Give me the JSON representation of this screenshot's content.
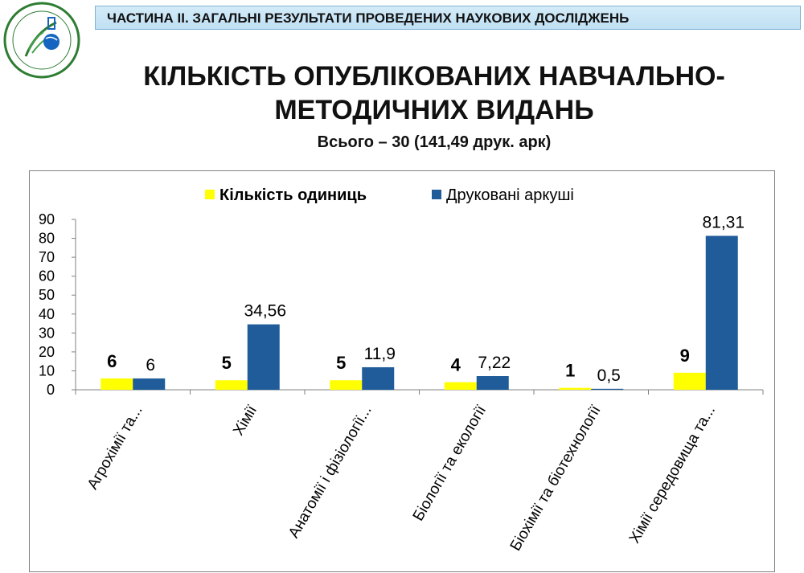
{
  "header": {
    "section_title": "ЧАСТИНА ІІ. ЗАГАЛЬНІ РЕЗУЛЬТАТИ ПРОВЕДЕНИХ НАУКОВИХ ДОСЛІДЖЕНЬ",
    "logo_icon": "faculty-seal-icon"
  },
  "title": {
    "line1": "КІЛЬКІСТЬ ОПУБЛІКОВАНИХ НАВЧАЛЬНО-",
    "line2": "МЕТОДИЧНИХ ВИДАНЬ"
  },
  "subtitle": "Всього – 30 (141,49 друк. арк)",
  "colors": {
    "units": "#ffff00",
    "sheets": "#1f5c99"
  },
  "chart_data": {
    "type": "bar",
    "categories": [
      "Агрохімії та...",
      "Хімії",
      "Анатомії і фізіології...",
      "Біології та екології",
      "Біохімії та біотехнології",
      "Хімії середовища та..."
    ],
    "series": [
      {
        "name": "Кількість одиниць",
        "values": [
          6,
          5,
          5,
          4,
          1,
          9
        ],
        "labels": [
          "6",
          "5",
          "5",
          "4",
          "1",
          "9"
        ]
      },
      {
        "name": "Друковані аркуші",
        "values": [
          6,
          34.56,
          11.9,
          7.22,
          0.5,
          81.31
        ],
        "labels": [
          "6",
          "34,56",
          "11,9",
          "7,22",
          "0,5",
          "81,31"
        ]
      }
    ],
    "ylim": [
      0,
      90
    ],
    "yticks": [
      0,
      10,
      20,
      30,
      40,
      50,
      60,
      70,
      80,
      90
    ],
    "legend_position": "top",
    "grid": false
  }
}
